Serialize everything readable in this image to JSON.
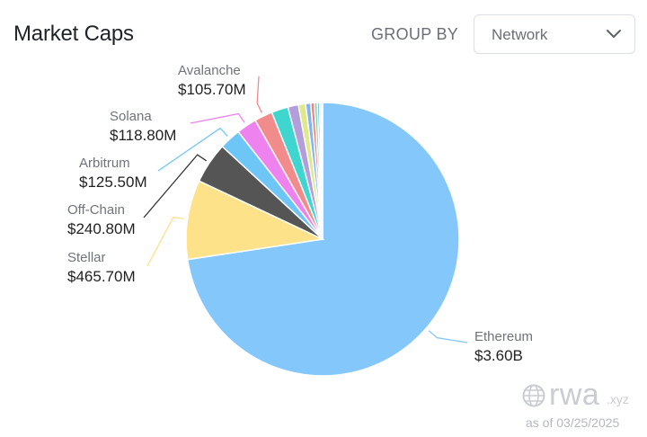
{
  "header": {
    "title": "Market Caps",
    "group_by_label": "GROUP BY",
    "group_by_value": "Network"
  },
  "footer": {
    "brand": "rwa",
    "brand_suffix": ".xyz",
    "as_of": "as of 03/25/2025"
  },
  "icons": [
    "chevron-down-icon",
    "globe-icon"
  ],
  "chart_data": {
    "type": "pie",
    "title": "Market Caps",
    "slices": [
      {
        "name": "Ethereum",
        "label": "$3.60B",
        "value": 3600,
        "color": "#84c8fb"
      },
      {
        "name": "Stellar",
        "label": "$465.70M",
        "value": 465.7,
        "color": "#fde28a"
      },
      {
        "name": "Off-Chain",
        "label": "$240.80M",
        "value": 240.8,
        "color": "#555555"
      },
      {
        "name": "Arbitrum",
        "label": "$125.50M",
        "value": 125.5,
        "color": "#6ec6f7"
      },
      {
        "name": "Solana",
        "label": "$118.80M",
        "value": 118.8,
        "color": "#ee82ee"
      },
      {
        "name": "Avalanche",
        "label": "$105.70M",
        "value": 105.7,
        "color": "#f28b8b"
      },
      {
        "name": "",
        "label": "",
        "value": 98,
        "color": "#3fd6cf"
      },
      {
        "name": "",
        "label": "",
        "value": 62,
        "color": "#b39ddb"
      },
      {
        "name": "",
        "label": "",
        "value": 42,
        "color": "#dfe98a"
      },
      {
        "name": "",
        "label": "",
        "value": 30,
        "color": "#82b4f5"
      },
      {
        "name": "",
        "label": "",
        "value": 21,
        "color": "#f08080"
      },
      {
        "name": "",
        "label": "",
        "value": 17,
        "color": "#7fd6b0"
      },
      {
        "name": "",
        "label": "",
        "value": 13,
        "color": "#6fb6e6"
      },
      {
        "name": "",
        "label": "",
        "value": 10,
        "color": "#9be3d6"
      },
      {
        "name": "",
        "label": "",
        "value": 8,
        "color": "#b8c8d8"
      }
    ]
  }
}
